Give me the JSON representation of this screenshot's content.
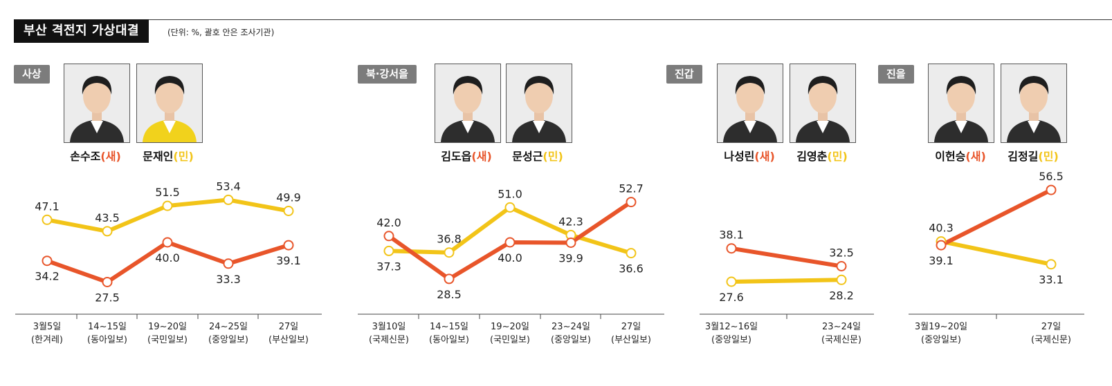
{
  "header": {
    "title": "부산 격전지 가상대결",
    "unit_note": "(단위: %, 괄호 안은 조사기관)"
  },
  "colors": {
    "party_new": "#e8552a",
    "party_min": "#f2c418"
  },
  "panels": [
    {
      "district": "사상",
      "candidates": [
        {
          "name": "손수조",
          "party": "(새)",
          "photo_icon": "candidate-photo-icon"
        },
        {
          "name": "문재인",
          "party": "(민)",
          "photo_icon": "candidate-photo-icon"
        }
      ]
    },
    {
      "district": "북·강서을",
      "candidates": [
        {
          "name": "김도읍",
          "party": "(새)",
          "photo_icon": "candidate-photo-icon"
        },
        {
          "name": "문성근",
          "party": "(민)",
          "photo_icon": "candidate-photo-icon"
        }
      ]
    },
    {
      "district": "진갑",
      "candidates": [
        {
          "name": "나성린",
          "party": "(새)",
          "photo_icon": "candidate-photo-icon"
        },
        {
          "name": "김영춘",
          "party": "(민)",
          "photo_icon": "candidate-photo-icon"
        }
      ]
    },
    {
      "district": "진을",
      "candidates": [
        {
          "name": "이헌승",
          "party": "(새)",
          "photo_icon": "candidate-photo-icon"
        },
        {
          "name": "김정길",
          "party": "(민)",
          "photo_icon": "candidate-photo-icon"
        }
      ]
    }
  ],
  "chart_data": [
    {
      "type": "line",
      "categories": [
        [
          "3월5일",
          "(한겨레)"
        ],
        [
          "14~15일",
          "(동아일보)"
        ],
        [
          "19~20일",
          "(국민일보)"
        ],
        [
          "24~25일",
          "(중앙일보)"
        ],
        [
          "27일",
          "(부산일보)"
        ]
      ],
      "series": [
        {
          "name": "손수조(새)",
          "color": "#e8552a",
          "values": [
            34.2,
            27.5,
            40.0,
            33.3,
            39.1
          ],
          "labels": [
            "34.2",
            "27.5",
            "40.0",
            "33.3",
            "39.1"
          ]
        },
        {
          "name": "문재인(민)",
          "color": "#f2c418",
          "values": [
            47.1,
            43.5,
            51.5,
            53.4,
            49.9
          ],
          "labels": [
            "47.1",
            "43.5",
            "51.5",
            "53.4",
            "49.9"
          ]
        }
      ]
    },
    {
      "type": "line",
      "categories": [
        [
          "3월10일",
          "(국제신문)"
        ],
        [
          "14~15일",
          "(동아일보)"
        ],
        [
          "19~20일",
          "(국민일보)"
        ],
        [
          "23~24일",
          "(중앙일보)"
        ],
        [
          "27일",
          "(부산일보)"
        ]
      ],
      "series": [
        {
          "name": "김도읍(새)",
          "color": "#e8552a",
          "values": [
            42.0,
            28.5,
            40.0,
            39.9,
            52.7
          ],
          "labels": [
            "42.0",
            "28.5",
            "40.0",
            "39.9",
            "52.7"
          ]
        },
        {
          "name": "문성근(민)",
          "color": "#f2c418",
          "values": [
            37.3,
            36.8,
            51.0,
            42.3,
            36.6
          ],
          "labels": [
            "37.3",
            "36.8",
            "51.0",
            "42.3",
            "36.6"
          ]
        }
      ]
    },
    {
      "type": "line",
      "categories": [
        [
          "3월12~16일",
          "(중앙일보)"
        ],
        [
          "23~24일",
          "(국제신문)"
        ]
      ],
      "series": [
        {
          "name": "나성린(새)",
          "color": "#e8552a",
          "values": [
            38.1,
            32.5
          ],
          "labels": [
            "38.1",
            "32.5"
          ]
        },
        {
          "name": "김영춘(민)",
          "color": "#f2c418",
          "values": [
            27.6,
            28.2
          ],
          "labels": [
            "27.6",
            "28.2"
          ]
        }
      ]
    },
    {
      "type": "line",
      "categories": [
        [
          "3월19~20일",
          "(중앙일보)"
        ],
        [
          "27일",
          "(국제신문)"
        ]
      ],
      "series": [
        {
          "name": "이헌승(새)",
          "color": "#e8552a",
          "values": [
            39.1,
            56.5
          ],
          "labels": [
            "39.1",
            "56.5"
          ]
        },
        {
          "name": "김정길(민)",
          "color": "#f2c418",
          "values": [
            40.3,
            33.1
          ],
          "labels": [
            "40.3",
            "33.1"
          ]
        }
      ]
    }
  ]
}
